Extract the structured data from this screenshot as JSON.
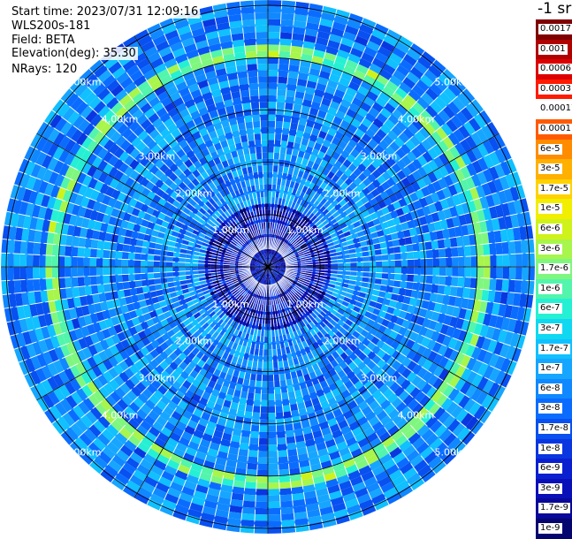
{
  "header": {
    "start_time": "Start time: 2023/07/31 12:09:16",
    "instrument": "WLS200s-181",
    "field": "Field: BETA",
    "elevation": "Elevation(deg): 35.30",
    "nrays": "NRays: 120"
  },
  "colorbar": {
    "unit": "-1 sr",
    "labels": [
      "0.0017",
      "0.001",
      "0.0006",
      "0.0003",
      "0.00017",
      "0.0001",
      "6e-5",
      "3e-5",
      "1.7e-5",
      "1e-5",
      "6e-6",
      "3e-6",
      "1.7e-6",
      "1e-6",
      "6e-7",
      "3e-7",
      "1.7e-7",
      "1e-7",
      "6e-8",
      "3e-8",
      "1.7e-8",
      "1e-8",
      "6e-9",
      "3e-9",
      "1.7e-9",
      "1e-9"
    ],
    "colors": [
      "#7f0000",
      "#b00000",
      "#dd0000",
      "#ff1a00",
      "#ffffff",
      "#ff5a00",
      "#ff8c00",
      "#ffb000",
      "#ffd200",
      "#f2ee00",
      "#cff21a",
      "#a8f54c",
      "#7ff77f",
      "#52f5ab",
      "#26f0d3",
      "#10d8f0",
      "#10c0ff",
      "#16a6ff",
      "#1088ff",
      "#0a6cff",
      "#0850f0",
      "#0a36e0",
      "#0a20d0",
      "#0a10b8",
      "#08089a",
      "#050570"
    ]
  },
  "chart_data": {
    "type": "heatmap",
    "subtype": "polar-ppi-scan",
    "field": "BETA",
    "unit": "-1 sr",
    "elevation_deg": 35.3,
    "n_rays": 120,
    "range_rings_km": [
      1.0,
      2.0,
      3.0,
      4.0,
      5.0
    ],
    "ring_labels": [
      "1.00km",
      "2.00km",
      "3.00km",
      "4.00km",
      "5.00km"
    ],
    "radial_lines_deg": [
      0,
      30,
      60,
      90,
      120,
      150,
      180,
      210,
      240,
      270,
      300,
      330
    ],
    "max_range_km": 5.1,
    "color_scale": "log",
    "color_range": [
      1e-09,
      0.0017
    ],
    "background_level": 6e-08,
    "enhanced_ring": {
      "range_km": [
        4.0,
        4.3
      ],
      "level": 1.7e-06
    }
  }
}
